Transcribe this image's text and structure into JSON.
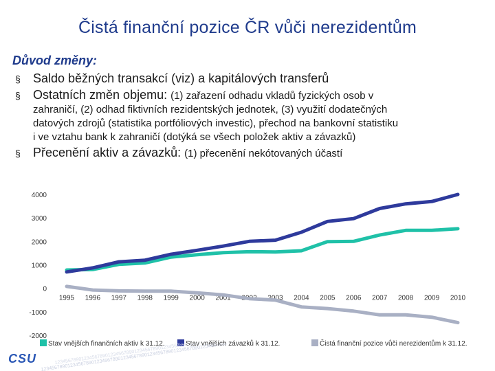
{
  "slide": {
    "title": "Čistá finanční pozice ČR vůči nerezidentům",
    "reason_label": "Důvod změny:",
    "bullet_marker": "§",
    "bullets": [
      {
        "lead": "Saldo běžných transakcí (viz) a kapitálových transferů",
        "detail": "",
        "continuation": []
      },
      {
        "lead": "Ostatních změn objemu: ",
        "detail": "(1) zařazení odhadu vkladů fyzických osob v",
        "continuation": [
          "zahraničí, (2) odhad fiktivních rezidentských jednotek, (3) využití dodatečných",
          "datových zdrojů (statistika portfóliových investic), přechod na bankovní statistiku",
          "i ve vztahu bank k zahraničí (dotýká se všech položek aktiv a závazků)"
        ]
      },
      {
        "lead": "Přecenění aktiv a závazků: ",
        "detail": "(1) přecenění nekótovaných účastí",
        "continuation": []
      }
    ],
    "logo_text": "CSU",
    "watermark_text": "1234567890123456789012345678901234567890123456789012345678901234567890"
  },
  "chart_data": {
    "type": "line",
    "x": [
      "1995",
      "1996",
      "1997",
      "1998",
      "1999",
      "2000",
      "2001",
      "2002",
      "2003",
      "2004",
      "2005",
      "2006",
      "2007",
      "2008",
      "2009",
      "2010"
    ],
    "yticks": [
      4000,
      3000,
      2000,
      1000,
      0,
      -1000,
      -2000
    ],
    "ylim": [
      -2000,
      4000
    ],
    "grid": false,
    "legend_position": "bottom",
    "series": [
      {
        "name": "Stav vnějších finančních aktiv k 31.12.",
        "color": "#1fc1a8",
        "values": [
          780,
          800,
          1020,
          1080,
          1330,
          1430,
          1520,
          1560,
          1550,
          1600,
          1990,
          2000,
          2270,
          2470,
          2470,
          2540
        ]
      },
      {
        "name": "Stav vnějších závazků k 31.12.",
        "color": "#2e3a9c",
        "values": [
          700,
          870,
          1130,
          1200,
          1450,
          1620,
          1800,
          2000,
          2050,
          2390,
          2850,
          2970,
          3400,
          3600,
          3700,
          4000
        ]
      },
      {
        "name": "Čistá finanční pozice vůči nerezidentům k 31.12.",
        "color": "#a9b0c4",
        "values": [
          80,
          -70,
          -110,
          -120,
          -120,
          -190,
          -280,
          -440,
          -500,
          -790,
          -860,
          -970,
          -1130,
          -1130,
          -1230,
          -1460
        ]
      }
    ]
  }
}
